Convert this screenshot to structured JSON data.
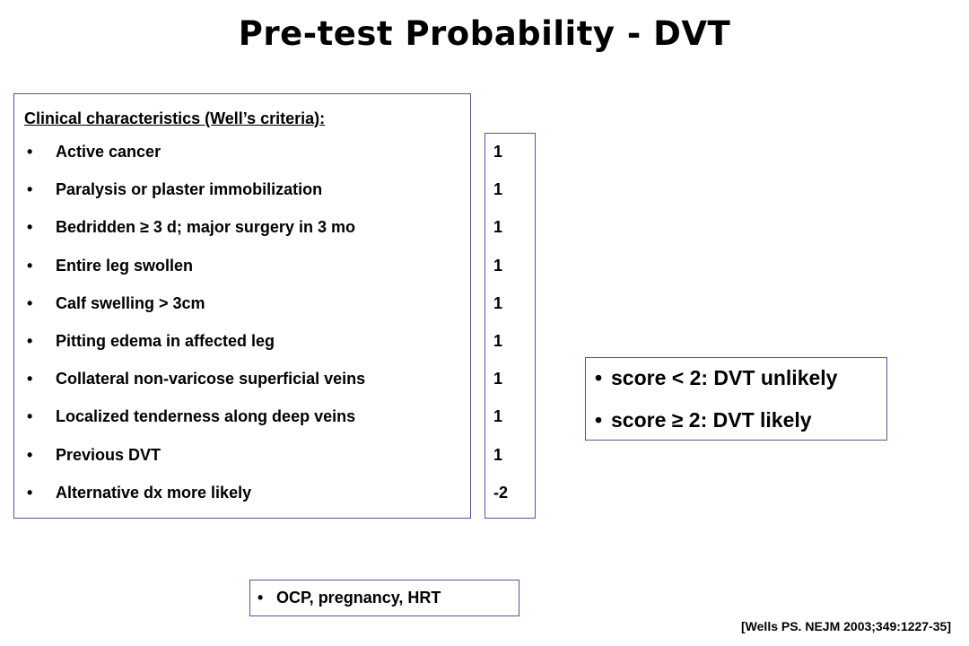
{
  "slide": {
    "title": "Pre-test Probability - DVT"
  },
  "criteria": {
    "heading": "Clinical characteristics (Well’s criteria):",
    "bullet": "•",
    "items": [
      {
        "label": "Active cancer",
        "score": "1"
      },
      {
        "label": "Paralysis or plaster immobilization",
        "score": "1"
      },
      {
        "label": "Bedridden ≥ 3 d; major surgery in 3 mo",
        "score": "1"
      },
      {
        "label": "Entire leg swollen",
        "score": "1"
      },
      {
        "label": "Calf swelling > 3cm",
        "score": "1"
      },
      {
        "label": "Pitting edema in affected leg",
        "score": "1"
      },
      {
        "label": "Collateral non-varicose superficial veins",
        "score": "1"
      },
      {
        "label": "Localized tenderness along deep veins",
        "score": "1"
      },
      {
        "label": "Previous DVT",
        "score": "1"
      },
      {
        "label": "Alternative dx more likely",
        "score": "-2"
      }
    ]
  },
  "interpretation": {
    "items": [
      "score < 2: DVT unlikely",
      "score ≥ 2:  DVT likely"
    ]
  },
  "other_factors": {
    "text": "OCP, pregnancy, HRT"
  },
  "citation": {
    "text": "[Wells PS. NEJM 2003;349:1227-35]"
  },
  "colors": {
    "box_border": "#4a5a9a",
    "text": "#000000",
    "background": "#ffffff"
  }
}
